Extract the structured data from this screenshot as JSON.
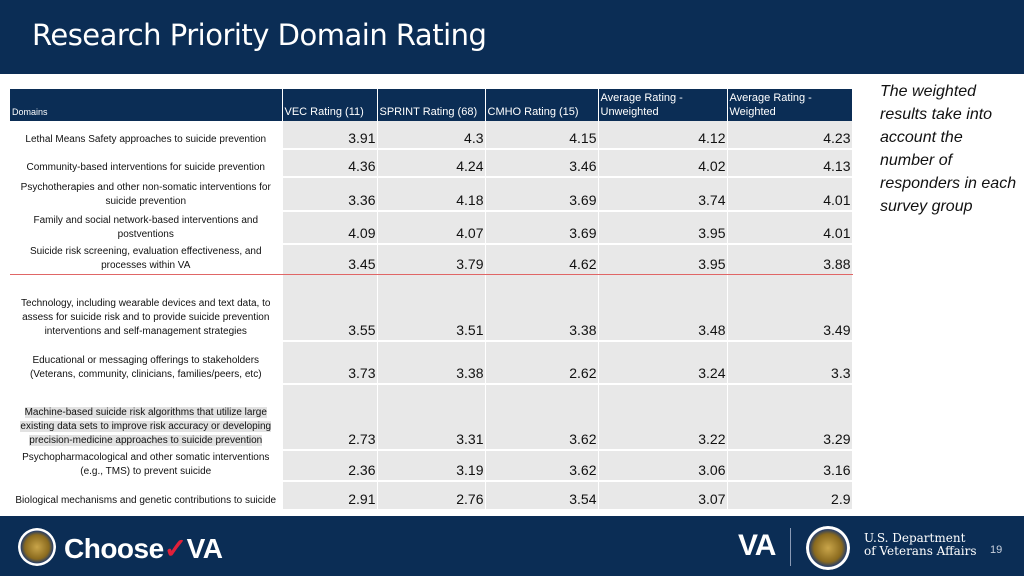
{
  "slide": {
    "title": "Research Priority Domain Rating",
    "side_note": "The weighted results take into account the number of responders in each survey group",
    "page_number": "19"
  },
  "table": {
    "headers": [
      "Domains",
      "VEC Rating (11)",
      "SPRINT Rating (68)",
      "CMHO Rating (15)",
      "Average Rating - Unweighted",
      "Average Rating - Weighted"
    ],
    "rows": [
      {
        "domain": "Lethal Means Safety approaches to suicide prevention",
        "values": [
          "3.91",
          "4.3",
          "4.15",
          "4.12",
          "4.23"
        ]
      },
      {
        "domain": "Community-based interventions for suicide prevention",
        "values": [
          "4.36",
          "4.24",
          "3.46",
          "4.02",
          "4.13"
        ]
      },
      {
        "domain": "Psychotherapies and other non-somatic interventions for suicide prevention",
        "values": [
          "3.36",
          "4.18",
          "3.69",
          "3.74",
          "4.01"
        ]
      },
      {
        "domain": "Family and social network-based interventions and postventions",
        "values": [
          "4.09",
          "4.07",
          "3.69",
          "3.95",
          "4.01"
        ]
      },
      {
        "domain": "Suicide risk screening, evaluation effectiveness, and processes within VA",
        "values": [
          "3.45",
          "3.79",
          "4.62",
          "3.95",
          "3.88"
        ]
      },
      {
        "domain": "Technology, including wearable devices and text data, to assess for suicide risk and to provide suicide prevention interventions and self-management strategies",
        "values": [
          "3.55",
          "3.51",
          "3.38",
          "3.48",
          "3.49"
        ]
      },
      {
        "domain": "Educational or messaging offerings to stakeholders (Veterans, community, clinicians, families/peers, etc)",
        "values": [
          "3.73",
          "3.38",
          "2.62",
          "3.24",
          "3.3"
        ]
      },
      {
        "domain": "Machine-based suicide risk algorithms that utilize large existing data sets to improve risk accuracy or developing precision-medicine approaches to suicide prevention",
        "values": [
          "2.73",
          "3.31",
          "3.62",
          "3.22",
          "3.29"
        ]
      },
      {
        "domain": "Psychopharmacological and other somatic interventions (e.g., TMS) to prevent suicide",
        "values": [
          "2.36",
          "3.19",
          "3.62",
          "3.06",
          "3.16"
        ]
      },
      {
        "domain": "Biological mechanisms and genetic contributions to suicide",
        "values": [
          "2.91",
          "2.76",
          "3.54",
          "3.07",
          "2.9"
        ]
      }
    ]
  },
  "footer": {
    "choose": "Choose",
    "va_mark": "VA",
    "va_logo": "VA",
    "dept_line1": "U.S. Department",
    "dept_line2": "of Veterans Affairs",
    "left_seal_icon": "va-seal-icon",
    "right_seal_icon": "va-seal-icon"
  },
  "colors": {
    "navy": "#0b2d55",
    "cell_gray": "#e8e8e8",
    "accent_red": "#e0203a"
  }
}
